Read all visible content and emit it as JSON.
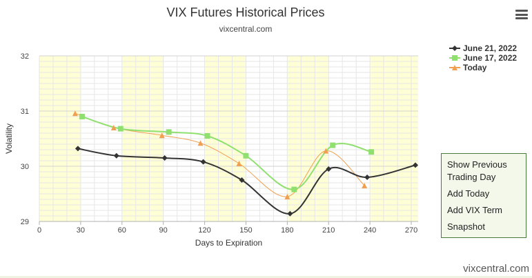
{
  "header": {
    "title": "VIX Futures Historical Prices",
    "subtitle": "vixcentral.com"
  },
  "menu_icon": "hamburger-menu-icon",
  "context_menu": {
    "items": [
      "Show Previous Trading Day",
      "Add Today",
      "Add VIX Term",
      "Snapshot"
    ]
  },
  "watermark": "vixcentral.com",
  "chart_data": {
    "type": "line",
    "xlabel": "Days to Expiration",
    "ylabel": "Volatility",
    "xlim": [
      0,
      275
    ],
    "ylim": [
      29,
      32
    ],
    "x_ticks": [
      0,
      30,
      60,
      90,
      120,
      150,
      180,
      210,
      240,
      270
    ],
    "y_ticks": [
      29,
      30,
      31,
      32
    ],
    "shaded_bands": [
      [
        0,
        30
      ],
      [
        60,
        90
      ],
      [
        120,
        150
      ],
      [
        180,
        210
      ],
      [
        240,
        275
      ]
    ],
    "band_color": "#ffffd6",
    "legend_position": "top-right",
    "series": [
      {
        "name": "June 21, 2022",
        "color": "#333333",
        "marker": "diamond",
        "x": [
          28,
          56,
          91,
          119,
          147,
          182,
          210,
          238,
          273
        ],
        "y": [
          30.32,
          30.19,
          30.15,
          30.08,
          29.75,
          29.14,
          29.95,
          29.8,
          30.02
        ]
      },
      {
        "name": "June 17, 2022",
        "color": "#90e070",
        "marker": "square",
        "x": [
          31,
          59,
          94,
          122,
          150,
          185,
          213,
          241
        ],
        "y": [
          30.9,
          30.68,
          30.62,
          30.55,
          30.19,
          29.58,
          30.38,
          30.26
        ]
      },
      {
        "name": "Today",
        "color": "#f0a050",
        "marker": "triangle",
        "x": [
          26,
          54,
          89,
          117,
          145,
          180,
          208,
          236
        ],
        "y": [
          30.96,
          30.7,
          30.56,
          30.42,
          30.05,
          29.45,
          30.28,
          29.65
        ]
      }
    ]
  }
}
